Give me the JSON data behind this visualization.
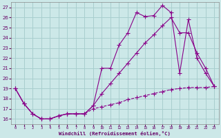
{
  "background_color": "#cce8e8",
  "grid_color": "#a8cece",
  "line_color": "#880088",
  "x_min": 0,
  "x_max": 23,
  "y_min": 15.5,
  "y_max": 27.5,
  "y_ticks": [
    16,
    17,
    18,
    19,
    20,
    21,
    22,
    23,
    24,
    25,
    26,
    27
  ],
  "xlabel": "Windchill (Refroidissement éolien,°C)",
  "line1_x": [
    0,
    1,
    2,
    3,
    4,
    5,
    6,
    7,
    8,
    9,
    10,
    11,
    12,
    13,
    14,
    15,
    16,
    17,
    18,
    19,
    20,
    21,
    22,
    23
  ],
  "line1_y": [
    19.0,
    17.5,
    16.5,
    16.0,
    16.0,
    16.3,
    16.5,
    16.5,
    16.5,
    17.3,
    21.0,
    21.0,
    23.3,
    24.5,
    26.5,
    26.1,
    26.2,
    27.2,
    26.5,
    20.5,
    25.8,
    22.0,
    20.5,
    19.2
  ],
  "line2_x": [
    0,
    1,
    2,
    3,
    4,
    5,
    6,
    7,
    8,
    9,
    10,
    11,
    12,
    13,
    14,
    15,
    16,
    17,
    18,
    19,
    20,
    21,
    22,
    23
  ],
  "line2_y": [
    19.0,
    17.5,
    16.5,
    16.0,
    16.0,
    16.3,
    16.5,
    16.5,
    16.5,
    17.3,
    18.5,
    19.5,
    20.5,
    21.5,
    22.5,
    23.5,
    24.3,
    25.2,
    26.0,
    24.5,
    24.5,
    22.5,
    21.0,
    19.2
  ],
  "line3_x": [
    0,
    1,
    2,
    3,
    4,
    5,
    6,
    7,
    8,
    9,
    10,
    11,
    12,
    13,
    14,
    15,
    16,
    17,
    18,
    19,
    20,
    21,
    22,
    23
  ],
  "line3_y": [
    19.0,
    17.5,
    16.5,
    16.0,
    16.0,
    16.3,
    16.5,
    16.5,
    16.5,
    17.0,
    17.2,
    17.4,
    17.6,
    17.9,
    18.1,
    18.3,
    18.5,
    18.7,
    18.9,
    19.0,
    19.1,
    19.1,
    19.1,
    19.2
  ]
}
